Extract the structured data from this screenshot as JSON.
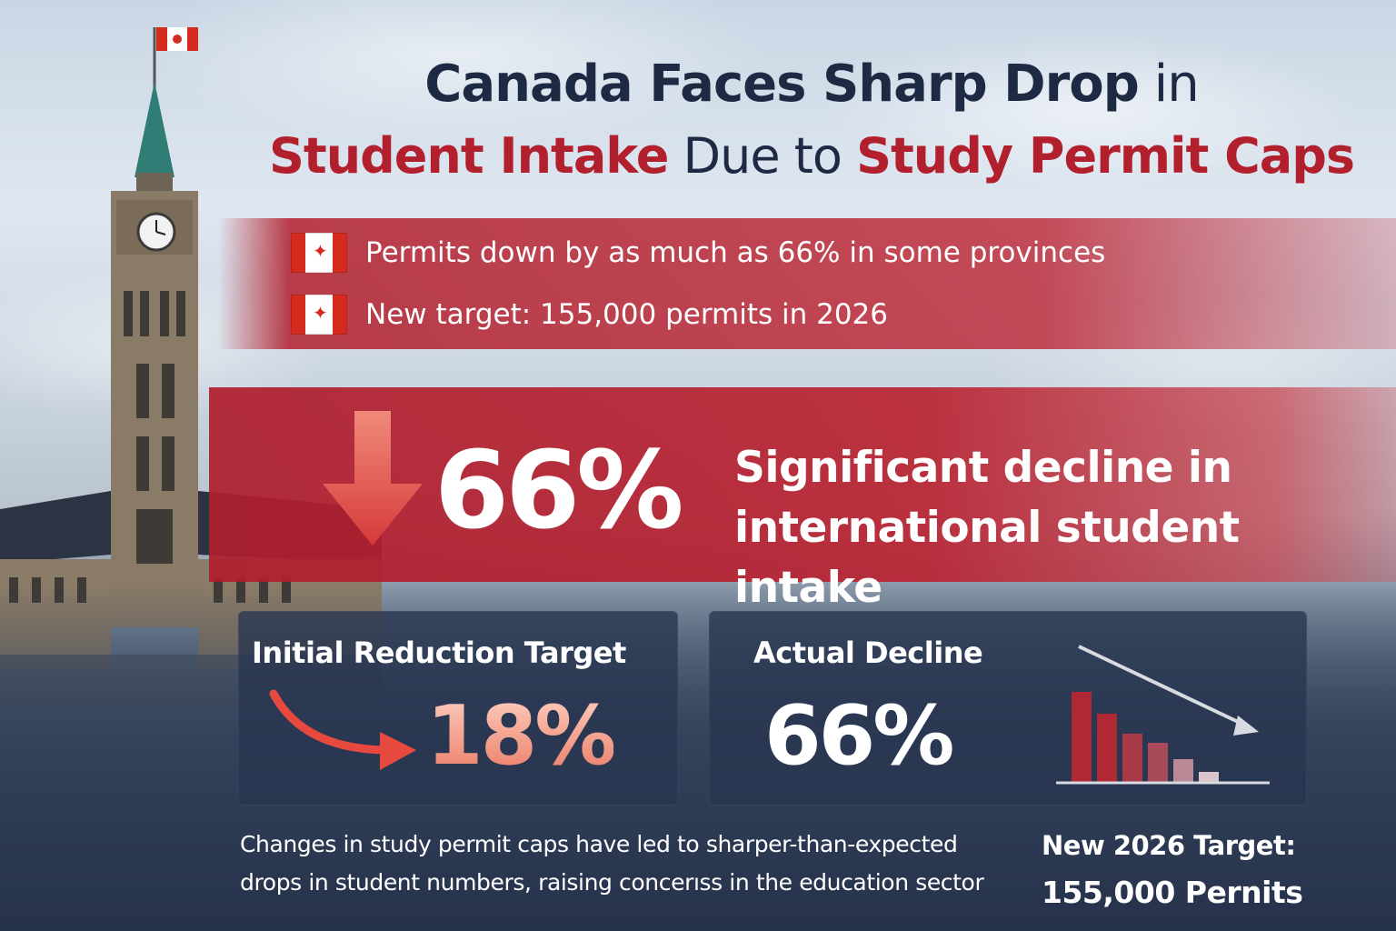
{
  "headline": {
    "line1_main": "Canada Faces Sharp Drop",
    "line1_tail": " in",
    "line2_red1": "Student Intake",
    "line2_mid": " Due to ",
    "line2_red2": "Study Permit Caps"
  },
  "bullets": [
    {
      "icon": "canada-flag-icon",
      "text": "Permits down by as much as 66% in some provinces"
    },
    {
      "icon": "canada-flag-icon",
      "text": "New target: 155,000 permits in 2026"
    }
  ],
  "banner": {
    "percent": "66%",
    "line1": "Significant decline in",
    "line2": "international student intake"
  },
  "cards": {
    "initial": {
      "title": "Initial Reduction Target",
      "value": "18%"
    },
    "actual": {
      "title": "Actual Decline",
      "value": "66%"
    }
  },
  "footnote": {
    "line1": "Changes in study permit caps have led to sharper-than-expected",
    "line2": "drops in student numbers, raising concerıss in the education sector"
  },
  "target": {
    "line1": "New 2026 Target:",
    "line2": "155,000 Pernits"
  },
  "colors": {
    "accent_red": "#b21f2d",
    "navy": "#1e2a44",
    "card_bg": "#283450"
  }
}
